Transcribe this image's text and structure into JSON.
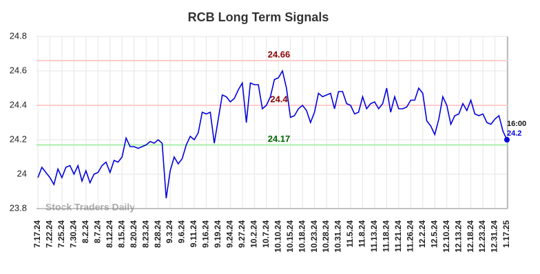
{
  "chart_data": {
    "type": "line",
    "title": "RCB Long Term Signals",
    "watermark": "Stock Traders Daily",
    "categories": [
      "7.17.24",
      null,
      null,
      "7.22.24",
      null,
      null,
      "7.25.24",
      null,
      null,
      "7.30.24",
      null,
      null,
      "8.2.24",
      null,
      null,
      "8.7.24",
      null,
      null,
      "8.12.24",
      null,
      null,
      "8.15.24",
      null,
      null,
      "8.20.24",
      null,
      null,
      "8.23.24",
      null,
      null,
      "8.28.24",
      null,
      null,
      "9.3.24",
      null,
      null,
      "9.6.24",
      null,
      null,
      "9.11.24",
      null,
      null,
      "9.16.24",
      null,
      null,
      "9.19.24",
      null,
      null,
      "9.24.24",
      null,
      null,
      "9.27.24",
      null,
      null,
      "10.2.24",
      null,
      null,
      "10.7.24",
      null,
      null,
      "10.10.24",
      null,
      null,
      "10.15.24",
      null,
      null,
      "10.18.24",
      null,
      null,
      "10.23.24",
      null,
      null,
      "10.28.24",
      null,
      null,
      "10.31.24",
      null,
      null,
      "11.5.24",
      null,
      null,
      "11.8.24",
      null,
      null,
      "11.13.24",
      null,
      null,
      "11.18.24",
      null,
      null,
      "11.21.24",
      null,
      null,
      "11.26.24",
      null,
      null,
      "12.2.24",
      null,
      null,
      "12.5.24",
      null,
      null,
      "12.10.24",
      null,
      null,
      "12.13.24",
      null,
      null,
      "12.18.24",
      null,
      null,
      "12.23.24",
      null,
      null,
      "12.31.24",
      null,
      null,
      "1.17.25"
    ],
    "series": [
      {
        "name": "RCB",
        "color": "#0000dd",
        "values": [
          23.98,
          24.04,
          24.01,
          23.98,
          23.94,
          24.03,
          23.98,
          24.04,
          24.05,
          24.0,
          24.05,
          23.96,
          24.02,
          23.95,
          24.0,
          24.01,
          24.05,
          24.07,
          24.01,
          24.08,
          24.07,
          24.1,
          24.21,
          24.16,
          24.16,
          24.15,
          24.16,
          24.17,
          24.19,
          24.18,
          24.2,
          24.18,
          23.86,
          24.02,
          24.1,
          24.06,
          24.09,
          24.17,
          24.22,
          24.2,
          24.24,
          24.36,
          24.35,
          24.36,
          24.18,
          24.32,
          24.46,
          24.45,
          24.42,
          24.44,
          24.49,
          24.53,
          24.3,
          24.53,
          24.52,
          24.52,
          24.38,
          24.4,
          24.45,
          24.55,
          24.56,
          24.6,
          24.5,
          24.33,
          24.34,
          24.38,
          24.4,
          24.37,
          24.3,
          24.36,
          24.47,
          24.45,
          24.46,
          24.47,
          24.38,
          24.48,
          24.48,
          24.41,
          24.4,
          24.35,
          24.36,
          24.45,
          24.38,
          24.41,
          24.42,
          24.38,
          24.41,
          24.5,
          24.36,
          24.45,
          24.38,
          24.38,
          24.39,
          24.43,
          24.43,
          24.5,
          24.47,
          24.31,
          24.28,
          24.23,
          24.32,
          24.45,
          24.4,
          24.29,
          24.34,
          24.35,
          24.41,
          24.37,
          24.43,
          24.35,
          24.34,
          24.35,
          24.3,
          24.29,
          24.32,
          24.34,
          24.25,
          24.2
        ]
      }
    ],
    "last_time": "16:00",
    "reference_lines": [
      {
        "value": 24.66,
        "color": "#ffcccc",
        "label_color": "#8b0000"
      },
      {
        "value": 24.4,
        "color": "#ffcccc",
        "label_color": "#8b0000"
      },
      {
        "value": 24.17,
        "color": "#aaeeaa",
        "label_color": "#006400"
      }
    ],
    "ylim": [
      23.8,
      24.8
    ],
    "yticks": [
      23.8,
      24,
      24.2,
      24.4,
      24.6,
      24.8
    ],
    "grid": true
  }
}
